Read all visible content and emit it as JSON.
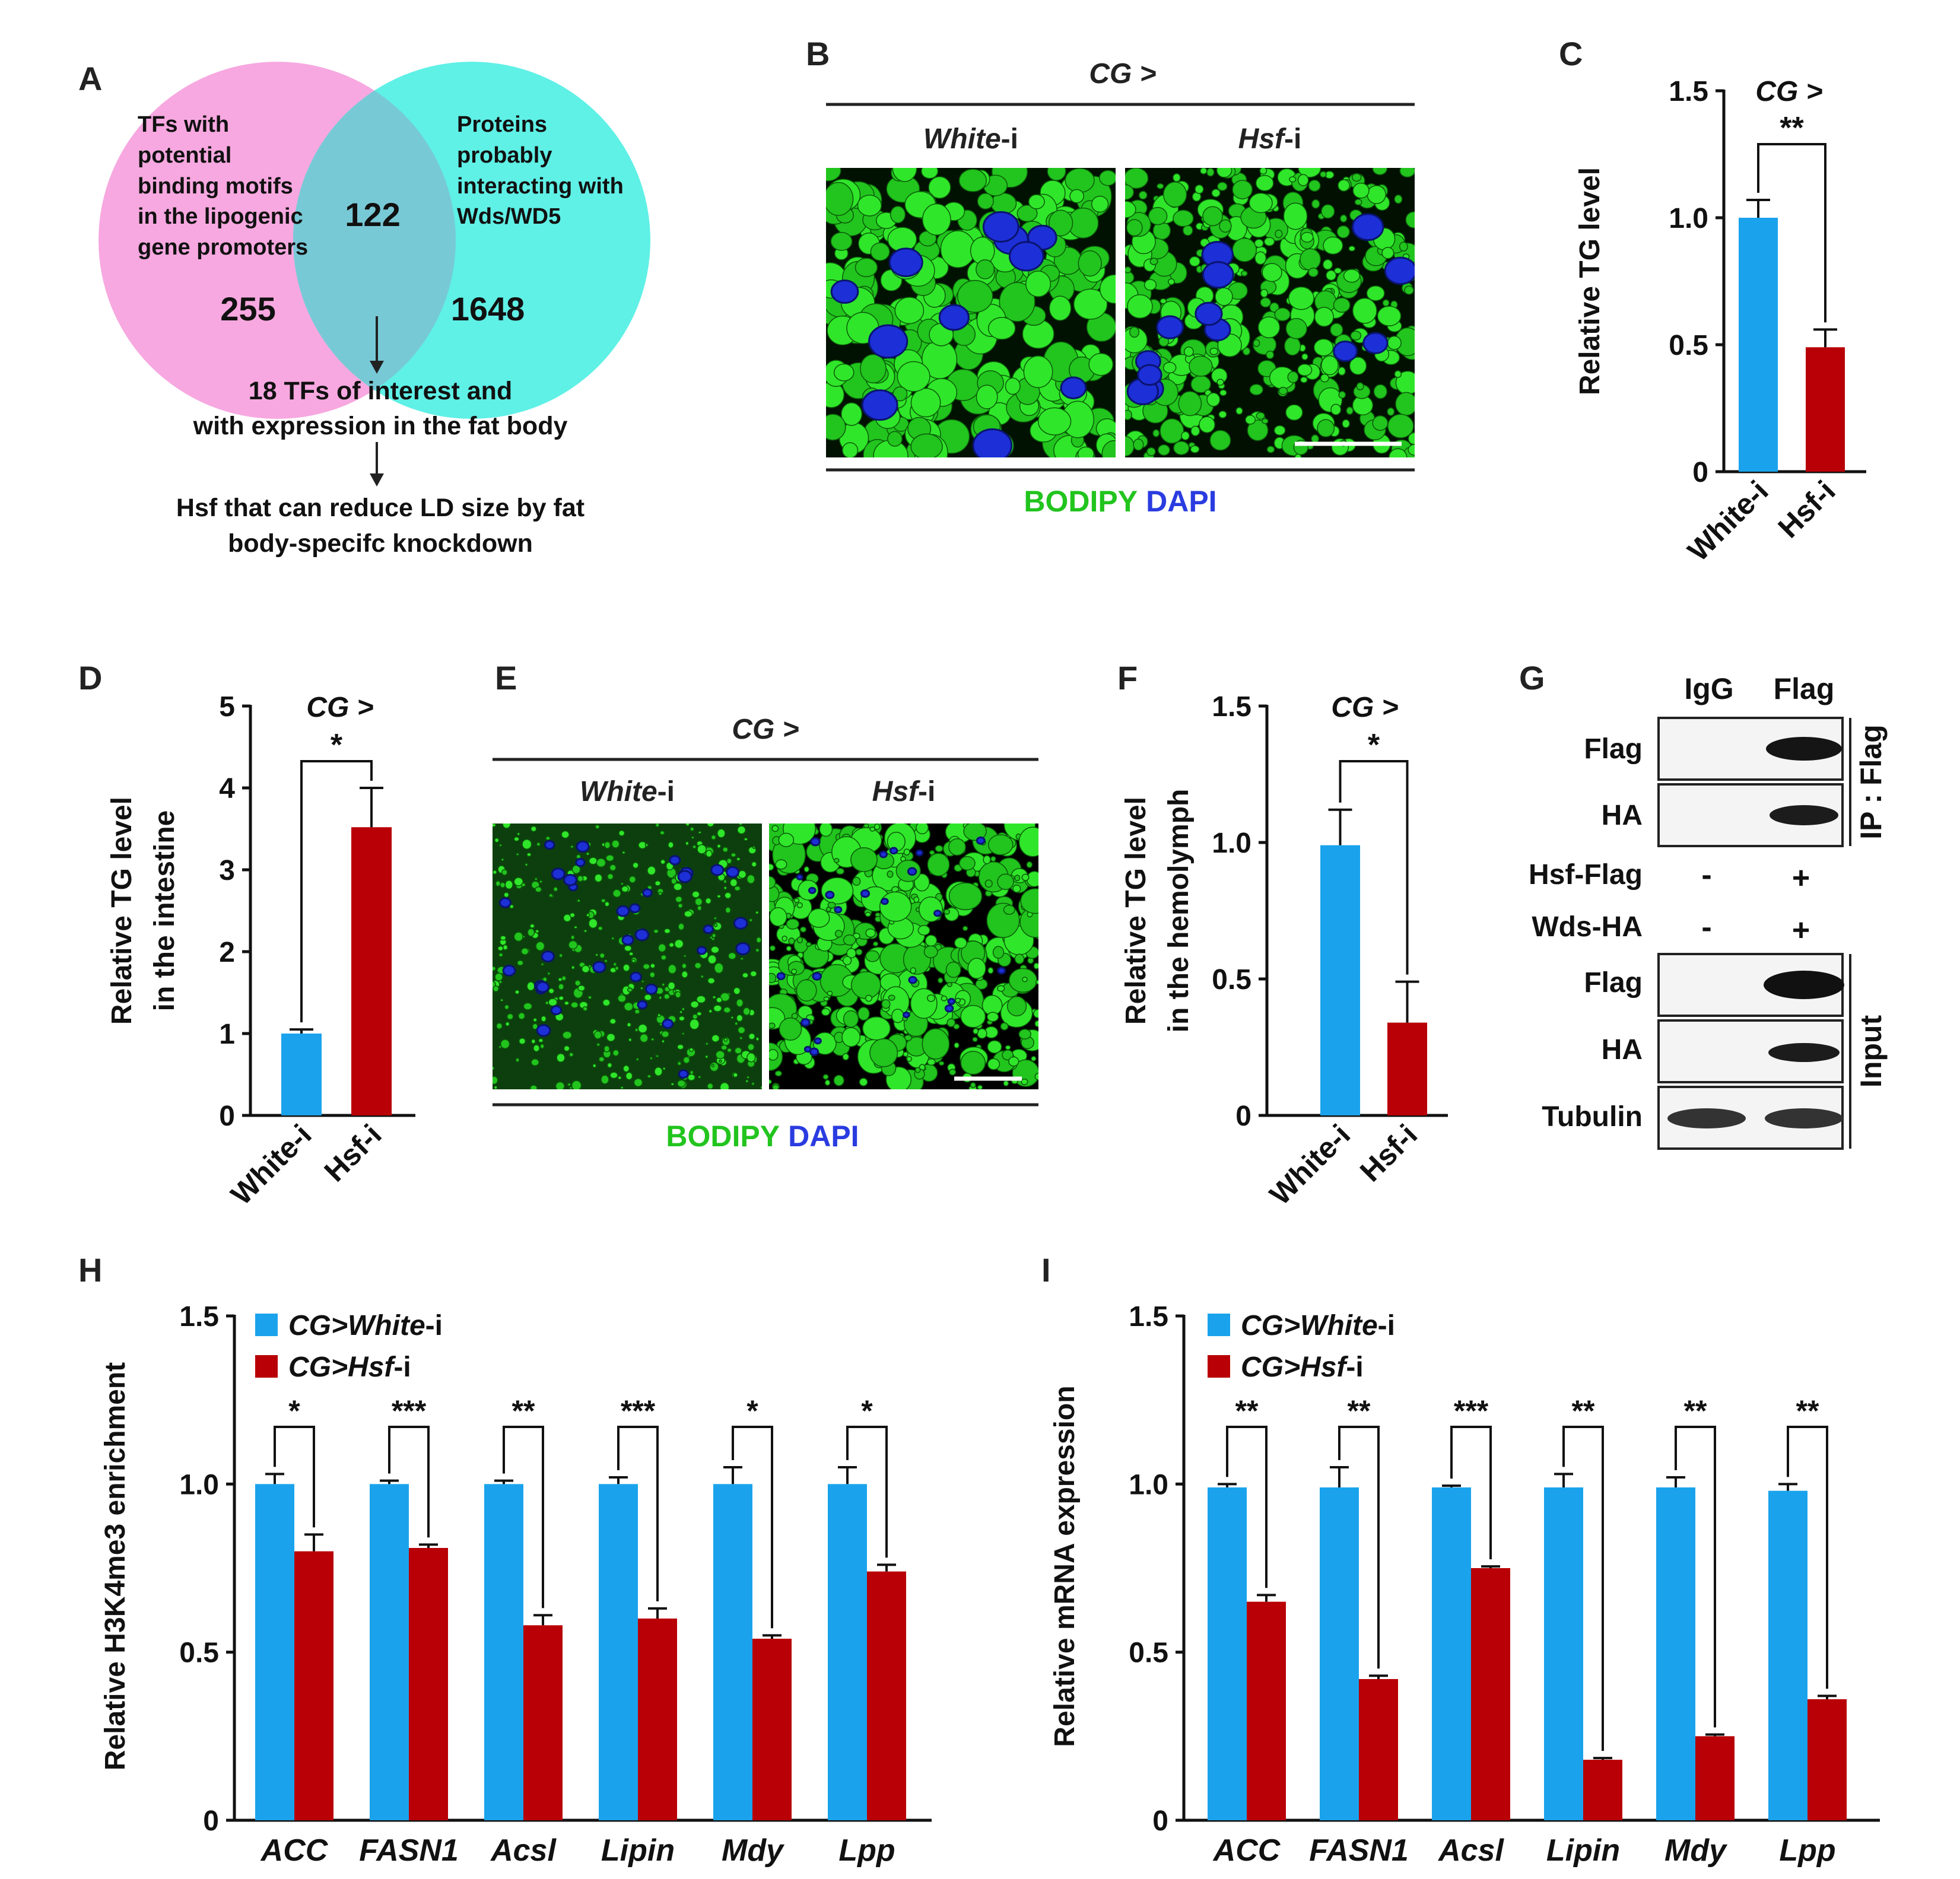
{
  "colors": {
    "white_i": "#1aa3ec",
    "hsf_i": "#b80006",
    "venn_left": "#f7a8e0",
    "venn_right": "#5ff0e6",
    "bodipy": "#22c41e",
    "dapi": "#2a3ce0"
  },
  "panel_labels": [
    "A",
    "B",
    "C",
    "D",
    "E",
    "F",
    "G",
    "H",
    "I"
  ],
  "panelA": {
    "left_lines": [
      "TFs with",
      "potential",
      "binding motifs",
      "in the lipogenic",
      "gene promoters"
    ],
    "right_lines": [
      "Proteins",
      "probably",
      "interacting with",
      "Wds/WD5"
    ],
    "left_count": "255",
    "overlap_count": "122",
    "right_count": "1648",
    "step1_lines": [
      "18 TFs of interest and",
      "with expression in the fat body"
    ],
    "step2_lines": [
      "Hsf that can reduce LD size by fat",
      "body-specifc knockdown"
    ]
  },
  "panelB": {
    "genotype": "CG >",
    "cond1_em": "White",
    "cond2_em": "Hsf",
    "suffix": "-i",
    "stain1": "BODIPY",
    "stain2": "DAPI"
  },
  "panelE": {
    "genotype": "CG >",
    "cond1_em": "White",
    "cond2_em": "Hsf",
    "suffix": "-i",
    "stain1": "BODIPY",
    "stain2": "DAPI"
  },
  "panelG": {
    "col_headers": [
      "IgG",
      "Flag"
    ],
    "ip_rows": [
      "Flag",
      "HA"
    ],
    "ip_label": "IP : Flag",
    "construct_rows": [
      {
        "name": "Hsf-Flag",
        "igg": "-",
        "flag": "+"
      },
      {
        "name": "Wds-HA",
        "igg": "-",
        "flag": "+"
      }
    ],
    "input_rows": [
      "Flag",
      "HA",
      "Tubulin"
    ],
    "input_label": "Input"
  },
  "chart_data": [
    {
      "id": "C",
      "type": "bar",
      "title": "CG >",
      "categories": [
        "White-i",
        "Hsf-i"
      ],
      "values": [
        1.0,
        0.49
      ],
      "errors": [
        0.07,
        0.07
      ],
      "ylabel": "Relative TG level",
      "ylim": [
        0,
        1.5
      ],
      "yticks": [
        "0",
        "0.5",
        "1.0",
        "1.5"
      ],
      "significance": "**"
    },
    {
      "id": "D",
      "type": "bar",
      "title": "CG >",
      "categories": [
        "White-i",
        "Hsf-i"
      ],
      "values": [
        1.0,
        3.52
      ],
      "errors": [
        0.05,
        0.48
      ],
      "ylabel_lines": [
        "Relative TG level",
        "in the intestine"
      ],
      "ylim": [
        0,
        5
      ],
      "yticks": [
        "0",
        "1",
        "2",
        "3",
        "4",
        "5"
      ],
      "significance": "*"
    },
    {
      "id": "F",
      "type": "bar",
      "title": "CG >",
      "categories": [
        "White-i",
        "Hsf-i"
      ],
      "values": [
        0.99,
        0.34
      ],
      "errors": [
        0.13,
        0.15
      ],
      "ylabel_lines": [
        "Relative TG level",
        "in the hemolymph"
      ],
      "ylim": [
        0,
        1.5
      ],
      "yticks": [
        "0",
        "0.5",
        "1.0",
        "1.5"
      ],
      "significance": "*"
    },
    {
      "id": "H",
      "type": "bar",
      "categories": [
        "ACC",
        "FASN1",
        "Acsl",
        "Lipin",
        "Mdy",
        "Lpp"
      ],
      "series": [
        {
          "name": "CG>White-i",
          "legend_em": "CG>White",
          "legend_suffix": "-i",
          "values": [
            1.0,
            1.0,
            1.0,
            1.0,
            1.0,
            1.0
          ],
          "errors": [
            0.03,
            0.01,
            0.01,
            0.02,
            0.05,
            0.05
          ]
        },
        {
          "name": "CG>Hsf-i",
          "legend_em": "CG>Hsf",
          "legend_suffix": "-i",
          "values": [
            0.8,
            0.81,
            0.58,
            0.6,
            0.54,
            0.74
          ],
          "errors": [
            0.05,
            0.01,
            0.03,
            0.03,
            0.01,
            0.02
          ]
        }
      ],
      "significance": [
        "*",
        "***",
        "**",
        "***",
        "*",
        "*"
      ],
      "ylabel": "Relative H3K4me3 enrichment",
      "ylim": [
        0,
        1.5
      ],
      "yticks": [
        "0",
        "0.5",
        "1.0",
        "1.5"
      ]
    },
    {
      "id": "I",
      "type": "bar",
      "categories": [
        "ACC",
        "FASN1",
        "Acsl",
        "Lipin",
        "Mdy",
        "Lpp"
      ],
      "series": [
        {
          "name": "CG>White-i",
          "legend_em": "CG>White",
          "legend_suffix": "-i",
          "values": [
            0.99,
            0.99,
            0.99,
            0.99,
            0.99,
            0.98
          ],
          "errors": [
            0.01,
            0.06,
            0.005,
            0.04,
            0.03,
            0.02
          ]
        },
        {
          "name": "CG>Hsf-i",
          "legend_em": "CG>Hsf",
          "legend_suffix": "-i",
          "values": [
            0.65,
            0.42,
            0.75,
            0.18,
            0.25,
            0.36
          ],
          "errors": [
            0.02,
            0.01,
            0.005,
            0.005,
            0.005,
            0.01
          ]
        }
      ],
      "significance": [
        "**",
        "**",
        "***",
        "**",
        "**",
        "**"
      ],
      "ylabel": "Relative mRNA expression",
      "ylim": [
        0,
        1.5
      ],
      "yticks": [
        "0",
        "0.5",
        "1.0",
        "1.5"
      ]
    }
  ]
}
